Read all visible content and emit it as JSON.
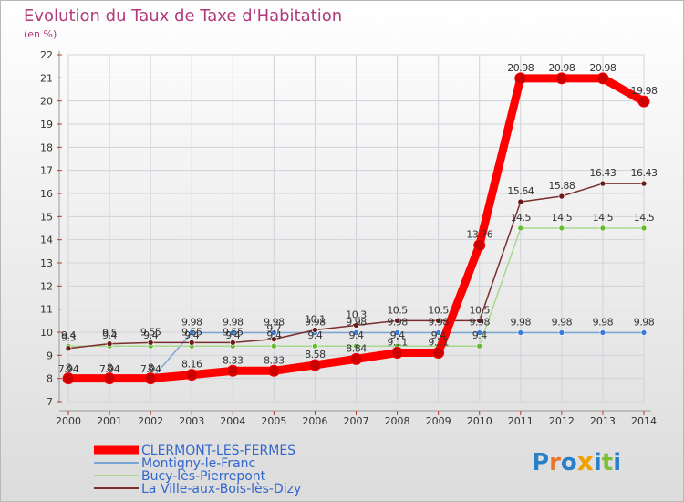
{
  "chart_data": {
    "type": "line",
    "title": "Evolution du Taux de Taxe d'Habitation",
    "subtitle": "(en %)",
    "x": [
      "2000",
      "2001",
      "2002",
      "2003",
      "2004",
      "2005",
      "2006",
      "2007",
      "2008",
      "2009",
      "2010",
      "2011",
      "2012",
      "2013",
      "2014"
    ],
    "y_ticks": [
      "7",
      "8",
      "9",
      "10",
      "11",
      "12",
      "13",
      "14",
      "15",
      "16",
      "17",
      "18",
      "19",
      "20",
      "21",
      "22"
    ],
    "ylim": [
      7,
      22
    ],
    "grid": true,
    "legend_position": "bottom-left",
    "series": [
      {
        "name": "CLERMONT-LES-FERMES",
        "color": "#ff0000",
        "marker_color": "#cc0000",
        "emphasis": "thick",
        "values": [
          8,
          8,
          8,
          8.16,
          8.33,
          8.33,
          8.58,
          8.84,
          9.11,
          9.11,
          13.76,
          20.98,
          20.98,
          20.98,
          19.98
        ],
        "labels": [
          "8",
          "8",
          "8",
          "8.16",
          "8.33",
          "8.33",
          "8.58",
          "8.84",
          "9.11",
          "9.11",
          "13.76",
          "20.98",
          "20.98",
          "20.98",
          "19.98"
        ]
      },
      {
        "name": "Montigny-le-Franc",
        "color": "#7aa6d6",
        "marker_color": "#3a7bd5",
        "values": [
          7.94,
          7.94,
          7.94,
          9.98,
          9.98,
          9.98,
          9.98,
          9.98,
          9.98,
          9.98,
          9.98,
          9.98,
          9.98,
          9.98,
          9.98
        ],
        "labels": [
          "7.94",
          "7.94",
          "7.94",
          "9.98",
          "9.98",
          "9.98",
          "9.98",
          "9.98",
          "9.98",
          "9.98",
          "9.98",
          "9.98",
          "9.98",
          "9.98",
          "9.98"
        ]
      },
      {
        "name": "Bucy-lès-Pierrepont",
        "color": "#a8d890",
        "marker_color": "#66bb33",
        "values": [
          9.4,
          9.4,
          9.4,
          9.4,
          9.4,
          9.4,
          9.4,
          9.4,
          9.4,
          9.4,
          9.4,
          14.5,
          14.5,
          14.5,
          14.5
        ],
        "labels": [
          "9.4",
          "9.4",
          "9.4",
          "9.4",
          "9.4",
          "9.4",
          "9.4",
          "9.4",
          "9.4",
          "9.4",
          "9.4",
          "14.5",
          "14.5",
          "14.5",
          "14.5"
        ]
      },
      {
        "name": "La Ville-aux-Bois-lès-Dizy",
        "color": "#7a2e2e",
        "marker_color": "#6a1a1a",
        "values": [
          9.3,
          9.5,
          9.55,
          9.55,
          9.55,
          9.7,
          10.1,
          10.3,
          10.5,
          10.5,
          10.5,
          15.64,
          15.88,
          16.43,
          16.43
        ],
        "labels": [
          "9.3",
          "9.5",
          "9.55",
          "9.55",
          "9.55",
          "9.7",
          "10.1",
          "10.3",
          "10.5",
          "10.5",
          "10.5",
          "15.64",
          "15.88",
          "16.43",
          "16.43"
        ]
      }
    ]
  },
  "brand": {
    "logo_text": "Proxiti"
  },
  "colors": {
    "title": "#b03a7a",
    "background_top": "#ffffff",
    "background_bottom": "#dcdcdc",
    "grid": "#cfd3da",
    "axis": "#999999"
  }
}
